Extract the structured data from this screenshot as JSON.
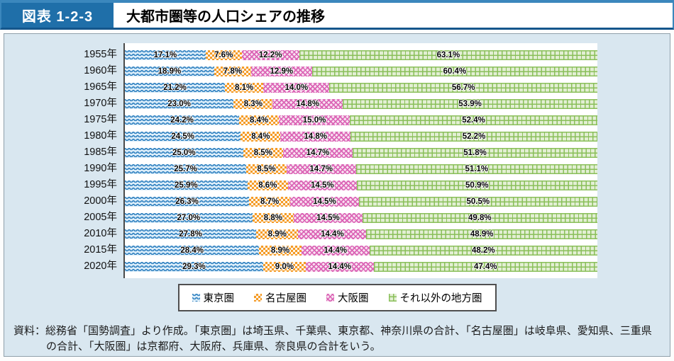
{
  "header": {
    "figure_label": "図表 1-2-3",
    "title": "大都市圏等の人口シェアの推移",
    "label_bg": "#1f6fa9",
    "border_color": "#3b87bd"
  },
  "chart_data": {
    "type": "bar",
    "orientation": "horizontal",
    "stacked": true,
    "unit": "%",
    "xlim": [
      0,
      100
    ],
    "grid": false,
    "legend_position": "bottom",
    "categories": [
      "1955年",
      "1960年",
      "1965年",
      "1970年",
      "1975年",
      "1980年",
      "1985年",
      "1990年",
      "1995年",
      "2000年",
      "2005年",
      "2010年",
      "2015年",
      "2020年"
    ],
    "series": [
      {
        "key": "tokyo",
        "name": "東京圏",
        "pattern": "wave",
        "color": "#2e86c6",
        "tint": "#d9ecf9",
        "values": [
          17.1,
          18.9,
          21.2,
          23.0,
          24.2,
          24.5,
          25.0,
          25.7,
          25.9,
          26.3,
          27.0,
          27.8,
          28.4,
          29.3
        ]
      },
      {
        "key": "nagoya",
        "name": "名古屋圏",
        "pattern": "checker",
        "color": "#f59b25",
        "tint": "#fdf4e8",
        "values": [
          7.6,
          7.8,
          8.1,
          8.3,
          8.4,
          8.4,
          8.5,
          8.5,
          8.6,
          8.7,
          8.8,
          8.9,
          8.9,
          9.0
        ]
      },
      {
        "key": "osaka",
        "name": "大阪圏",
        "pattern": "diagonal-cross",
        "color": "#db63b5",
        "tint": "#f8e2f1",
        "values": [
          12.2,
          12.9,
          14.0,
          14.8,
          15.0,
          14.8,
          14.7,
          14.7,
          14.5,
          14.5,
          14.5,
          14.4,
          14.4,
          14.4
        ]
      },
      {
        "key": "other",
        "name": "それ以外の地方圏",
        "pattern": "grid",
        "color": "#8abf5a",
        "tint": "#e3efd4",
        "values": [
          63.1,
          60.4,
          56.7,
          53.9,
          52.4,
          52.2,
          51.8,
          51.1,
          50.9,
          50.5,
          49.8,
          48.9,
          48.2,
          47.4
        ]
      }
    ]
  },
  "footer": {
    "note": "資料：総務省「国勢調査」より作成。「東京圏」は埼玉県、千葉県、東京都、神奈川県の合計、「名古屋圏」は岐阜県、愛知県、三重県の合計、「大阪圏」は京都府、大阪府、兵庫県、奈良県の合計をいう。"
  }
}
